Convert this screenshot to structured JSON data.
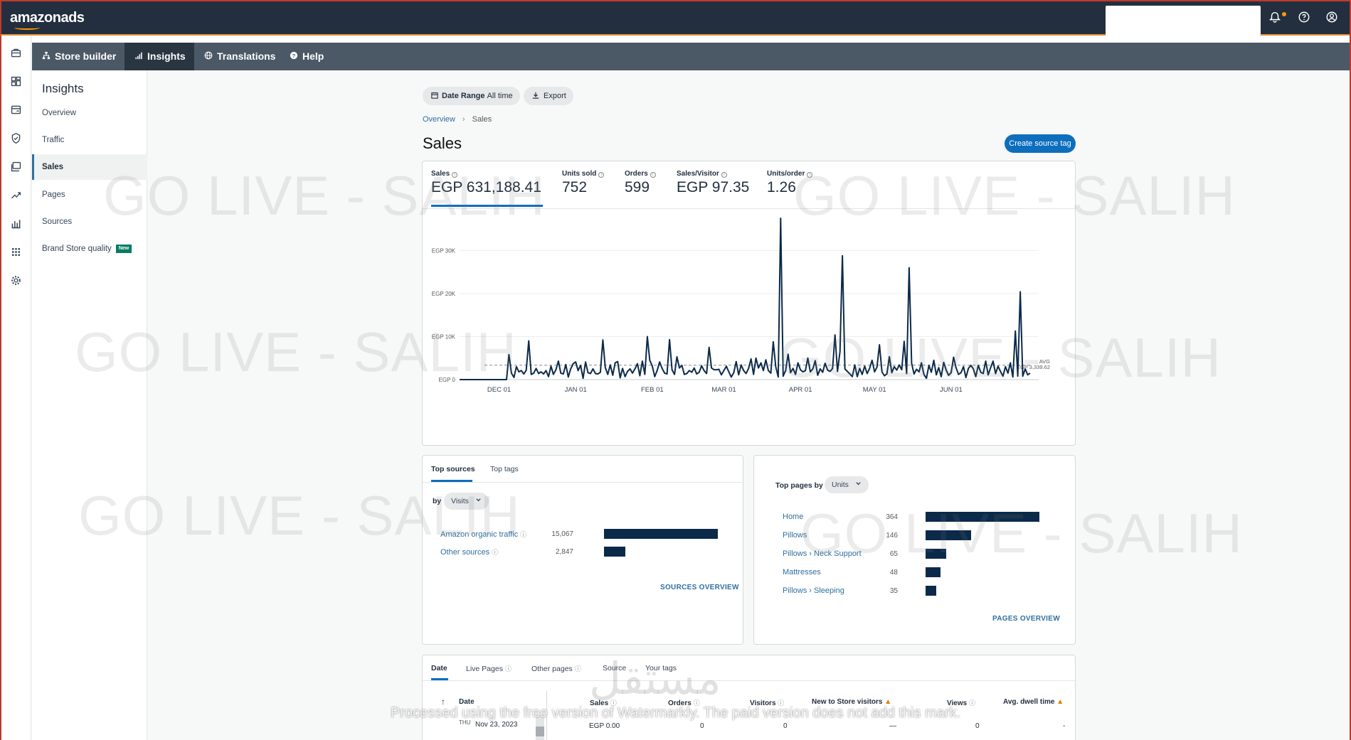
{
  "header": {
    "brand": "amazonads"
  },
  "rail_icons": [
    "briefcase-icon",
    "dashboard-icon",
    "card-icon",
    "shield-icon",
    "gallery-icon",
    "trend-icon",
    "bar-chart-icon",
    "apps-grid-icon",
    "settings-icon"
  ],
  "tabs": [
    {
      "label": "Store builder",
      "icon": "sitemap-icon"
    },
    {
      "label": "Insights",
      "icon": "signal-icon"
    },
    {
      "label": "Translations",
      "icon": "globe-icon"
    },
    {
      "label": "Help",
      "icon": "help-icon"
    }
  ],
  "sidebar": {
    "title": "Insights",
    "items": [
      {
        "label": "Overview"
      },
      {
        "label": "Traffic"
      },
      {
        "label": "Sales"
      },
      {
        "label": "Pages"
      },
      {
        "label": "Sources"
      },
      {
        "label": "Brand Store quality",
        "badge": "New"
      }
    ]
  },
  "toolbar": {
    "date_range_label": "Date Range",
    "date_range_value": "All time",
    "export_label": "Export"
  },
  "breadcrumb": {
    "root": "Overview",
    "current": "Sales"
  },
  "page": {
    "title": "Sales",
    "create_button": "Create source tag"
  },
  "kpis": [
    {
      "label": "Sales",
      "value": "EGP 631,188.41"
    },
    {
      "label": "Units sold",
      "value": "752"
    },
    {
      "label": "Orders",
      "value": "599"
    },
    {
      "label": "Sales/Visitor",
      "value": "EGP 97.35"
    },
    {
      "label": "Units/order",
      "value": "1.26"
    }
  ],
  "chart_data": {
    "type": "line",
    "title": "",
    "x_ticks": [
      "DEC 01",
      "JAN 01",
      "FEB 01",
      "MAR 01",
      "APR 01",
      "MAY 01",
      "JUN 01"
    ],
    "y_ticks": [
      "EGP 0",
      "EGP 10K",
      "EGP 20K",
      "EGP 30K"
    ],
    "ylim": [
      0,
      38000
    ],
    "avg_label": "AVG",
    "avg_value_label": "EGP 3,339.62",
    "avg": 3339.62,
    "grid": true,
    "series": [
      {
        "values": [
          0,
          0,
          0,
          0,
          0,
          0,
          0,
          0,
          0,
          0,
          0,
          0,
          0,
          0,
          0,
          0,
          0,
          0,
          0,
          0,
          5800,
          1500,
          500,
          3000,
          1800,
          2100,
          1300,
          2200,
          9000,
          1200,
          1500,
          2600,
          1400,
          1800,
          1300,
          2100,
          700,
          3100,
          1200,
          2300,
          4300,
          1500,
          1300,
          3500,
          600,
          2500,
          3700,
          4100,
          2100,
          3300,
          300,
          4100,
          1600,
          1400,
          2500,
          1400,
          1300,
          1700,
          9200,
          2800,
          1200,
          3400,
          1000,
          3900,
          4200,
          400,
          2600,
          700,
          1900,
          2500,
          1500,
          2500,
          3700,
          900,
          4300,
          1200,
          10000,
          4500,
          3200,
          700,
          2100,
          4100,
          2600,
          1500,
          1300,
          9300,
          2300,
          1200,
          5300,
          2700,
          3300,
          1200,
          1400,
          2100,
          1700,
          2700,
          1300,
          1700,
          3200,
          2100,
          1400,
          7500,
          2700,
          2300,
          2300,
          2400,
          1100,
          2100,
          3100,
          1800,
          600,
          1600,
          4200,
          1100,
          3400,
          2100,
          1400,
          2600,
          4800,
          1200,
          5000,
          2700,
          3900,
          2100,
          4600,
          2100,
          1500,
          8800,
          3000,
          600,
          37500,
          800,
          2100,
          5900,
          1600,
          2600,
          1200,
          3900,
          2300,
          1800,
          2100,
          5000,
          1800,
          2500,
          4400,
          1000,
          2500,
          1700,
          3800,
          2200,
          1900,
          2600,
          10400,
          1900,
          6500,
          28800,
          2500,
          1900,
          1300,
          700,
          3400,
          700,
          2600,
          1200,
          3100,
          1400,
          2600,
          4500,
          1800,
          2900,
          8100,
          1800,
          900,
          1300,
          5300,
          1600,
          3000,
          2200,
          3400,
          2300,
          8900,
          1400,
          26000,
          3800,
          1300,
          2400,
          1800,
          3900,
          1200,
          300,
          3300,
          1700,
          4500,
          1100,
          2800,
          700,
          4000,
          2200,
          1000,
          1600,
          5200,
          2800,
          1200,
          1600,
          3000,
          500,
          2600,
          3300,
          2500,
          700,
          3300,
          1700,
          1400,
          4300,
          1100,
          2800,
          4300,
          1400,
          3100,
          1900,
          800,
          3000,
          1500,
          3900,
          600,
          11300,
          800,
          20400,
          800,
          2500,
          1100,
          1500
        ]
      }
    ]
  },
  "top_sources": {
    "tabs": [
      "Top sources",
      "Top tags"
    ],
    "by_label": "by",
    "metric": "Visits",
    "rows": [
      {
        "label": "Amazon organic traffic",
        "value": "15,067",
        "amount": 15067
      },
      {
        "label": "Other sources",
        "value": "2,847",
        "amount": 2847
      }
    ],
    "link": "SOURCES OVERVIEW"
  },
  "top_pages": {
    "title": "Top pages by",
    "metric": "Units",
    "rows": [
      {
        "label": "Home",
        "value": "364",
        "amount": 364
      },
      {
        "label": "Pillows",
        "value": "146",
        "amount": 146
      },
      {
        "label": "Pillows › Neck Support",
        "value": "65",
        "amount": 65
      },
      {
        "label": "Mattresses",
        "value": "48",
        "amount": 48
      },
      {
        "label": "Pillows › Sleeping",
        "value": "35",
        "amount": 35
      }
    ],
    "link": "PAGES OVERVIEW"
  },
  "table": {
    "tabs": [
      "Date",
      "Live Pages",
      "Other pages",
      "Source",
      "Your tags"
    ],
    "columns": [
      "Date",
      "Sales",
      "Orders",
      "Visitors",
      "New to Store visitors",
      "Views",
      "Avg. dwell time"
    ],
    "rows": [
      {
        "day": "THU",
        "date": "Nov 23, 2023",
        "sales": "EGP 0.00",
        "orders": "0",
        "visitors": "0",
        "new": "—",
        "views": "0",
        "dwell": "-"
      }
    ]
  },
  "watermark": {
    "text": "GO LIVE - SALIH"
  },
  "overlay": {
    "notice": "Processed using the free version of Watermarkly. The paid version does not add this mark.",
    "logo_text": "مستقل"
  },
  "colors": {
    "topbar": "#232f3e",
    "accent": "#0d6ebd",
    "bar": "#0b2a4a",
    "line": "#0b2a4a"
  }
}
